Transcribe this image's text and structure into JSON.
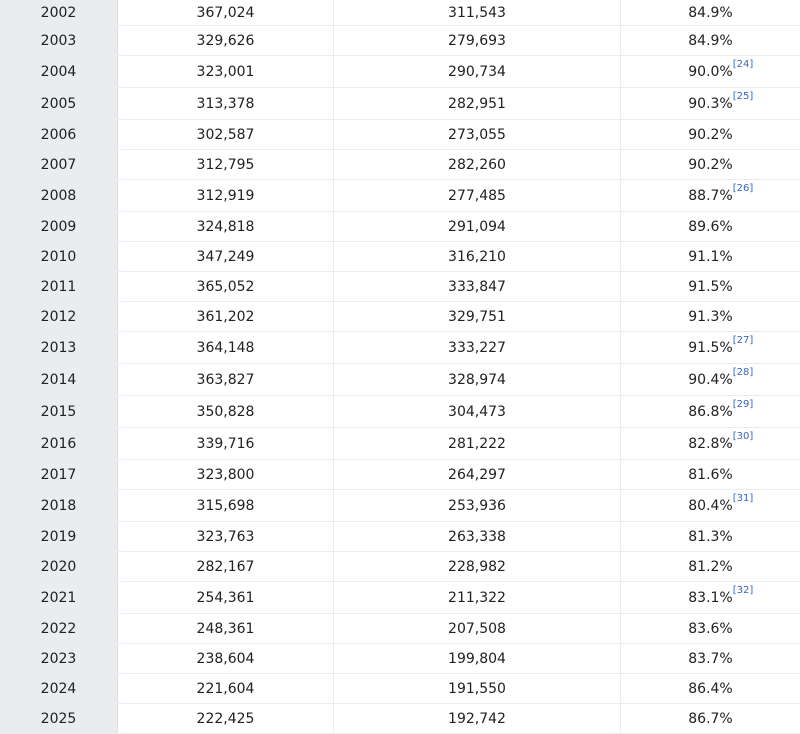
{
  "rows": [
    {
      "year": "2002",
      "a": "367,024",
      "b": "311,543",
      "pct": "84.9%",
      "ref": ""
    },
    {
      "year": "2003",
      "a": "329,626",
      "b": "279,693",
      "pct": "84.9%",
      "ref": ""
    },
    {
      "year": "2004",
      "a": "323,001",
      "b": "290,734",
      "pct": "90.0%",
      "ref": "[24]"
    },
    {
      "year": "2005",
      "a": "313,378",
      "b": "282,951",
      "pct": "90.3%",
      "ref": "[25]"
    },
    {
      "year": "2006",
      "a": "302,587",
      "b": "273,055",
      "pct": "90.2%",
      "ref": ""
    },
    {
      "year": "2007",
      "a": "312,795",
      "b": "282,260",
      "pct": "90.2%",
      "ref": ""
    },
    {
      "year": "2008",
      "a": "312,919",
      "b": "277,485",
      "pct": "88.7%",
      "ref": "[26]"
    },
    {
      "year": "2009",
      "a": "324,818",
      "b": "291,094",
      "pct": "89.6%",
      "ref": ""
    },
    {
      "year": "2010",
      "a": "347,249",
      "b": "316,210",
      "pct": "91.1%",
      "ref": ""
    },
    {
      "year": "2011",
      "a": "365,052",
      "b": "333,847",
      "pct": "91.5%",
      "ref": ""
    },
    {
      "year": "2012",
      "a": "361,202",
      "b": "329,751",
      "pct": "91.3%",
      "ref": ""
    },
    {
      "year": "2013",
      "a": "364,148",
      "b": "333,227",
      "pct": "91.5%",
      "ref": "[27]"
    },
    {
      "year": "2014",
      "a": "363,827",
      "b": "328,974",
      "pct": "90.4%",
      "ref": "[28]"
    },
    {
      "year": "2015",
      "a": "350,828",
      "b": "304,473",
      "pct": "86.8%",
      "ref": "[29]"
    },
    {
      "year": "2016",
      "a": "339,716",
      "b": "281,222",
      "pct": "82.8%",
      "ref": "[30]"
    },
    {
      "year": "2017",
      "a": "323,800",
      "b": "264,297",
      "pct": "81.6%",
      "ref": ""
    },
    {
      "year": "2018",
      "a": "315,698",
      "b": "253,936",
      "pct": "80.4%",
      "ref": "[31]"
    },
    {
      "year": "2019",
      "a": "323,763",
      "b": "263,338",
      "pct": "81.3%",
      "ref": ""
    },
    {
      "year": "2020",
      "a": "282,167",
      "b": "228,982",
      "pct": "81.2%",
      "ref": ""
    },
    {
      "year": "2021",
      "a": "254,361",
      "b": "211,322",
      "pct": "83.1%",
      "ref": "[32]"
    },
    {
      "year": "2022",
      "a": "248,361",
      "b": "207,508",
      "pct": "83.6%",
      "ref": ""
    },
    {
      "year": "2023",
      "a": "238,604",
      "b": "199,804",
      "pct": "83.7%",
      "ref": ""
    },
    {
      "year": "2024",
      "a": "221,604",
      "b": "191,550",
      "pct": "86.4%",
      "ref": ""
    },
    {
      "year": "2025",
      "a": "222,425",
      "b": "192,742",
      "pct": "86.7%",
      "ref": ""
    }
  ]
}
